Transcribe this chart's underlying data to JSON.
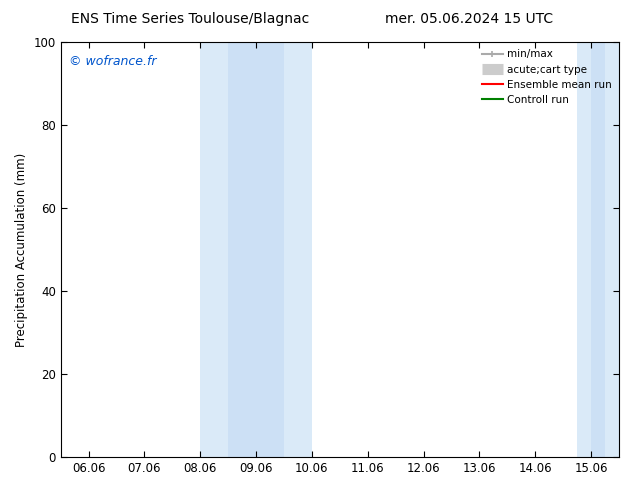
{
  "title_left": "ENS Time Series Toulouse/Blagnac",
  "title_right": "mer. 05.06.2024 15 UTC",
  "ylabel": "Precipitation Accumulation (mm)",
  "watermark": "© wofrance.fr",
  "ylim": [
    0,
    100
  ],
  "yticks": [
    0,
    20,
    40,
    60,
    80,
    100
  ],
  "xtick_labels": [
    "06.06",
    "07.06",
    "08.06",
    "09.06",
    "10.06",
    "11.06",
    "12.06",
    "13.06",
    "14.06",
    "15.06"
  ],
  "xtick_positions": [
    0,
    1,
    2,
    3,
    4,
    5,
    6,
    7,
    8,
    9
  ],
  "shade_outer_color": "#daeaf8",
  "shade_inner_color": "#cce0f5",
  "shade1_outer": [
    2.0,
    4.0
  ],
  "shade1_inner": [
    2.5,
    3.5
  ],
  "shade2_outer": [
    8.75,
    9.5
  ],
  "shade2_inner": [
    9.0,
    9.25
  ],
  "legend_items": [
    {
      "label": "min/max",
      "color": "#aaaaaa",
      "lw": 1.5,
      "ls": "-"
    },
    {
      "label": "acute;cart type",
      "color": "#cccccc",
      "lw": 6,
      "ls": "-"
    },
    {
      "label": "Ensemble mean run",
      "color": "red",
      "lw": 1.5,
      "ls": "-"
    },
    {
      "label": "Controll run",
      "color": "green",
      "lw": 1.5,
      "ls": "-"
    }
  ],
  "bg_color": "#ffffff",
  "title_fontsize": 10,
  "watermark_color": "#0055cc",
  "watermark_fontsize": 9
}
